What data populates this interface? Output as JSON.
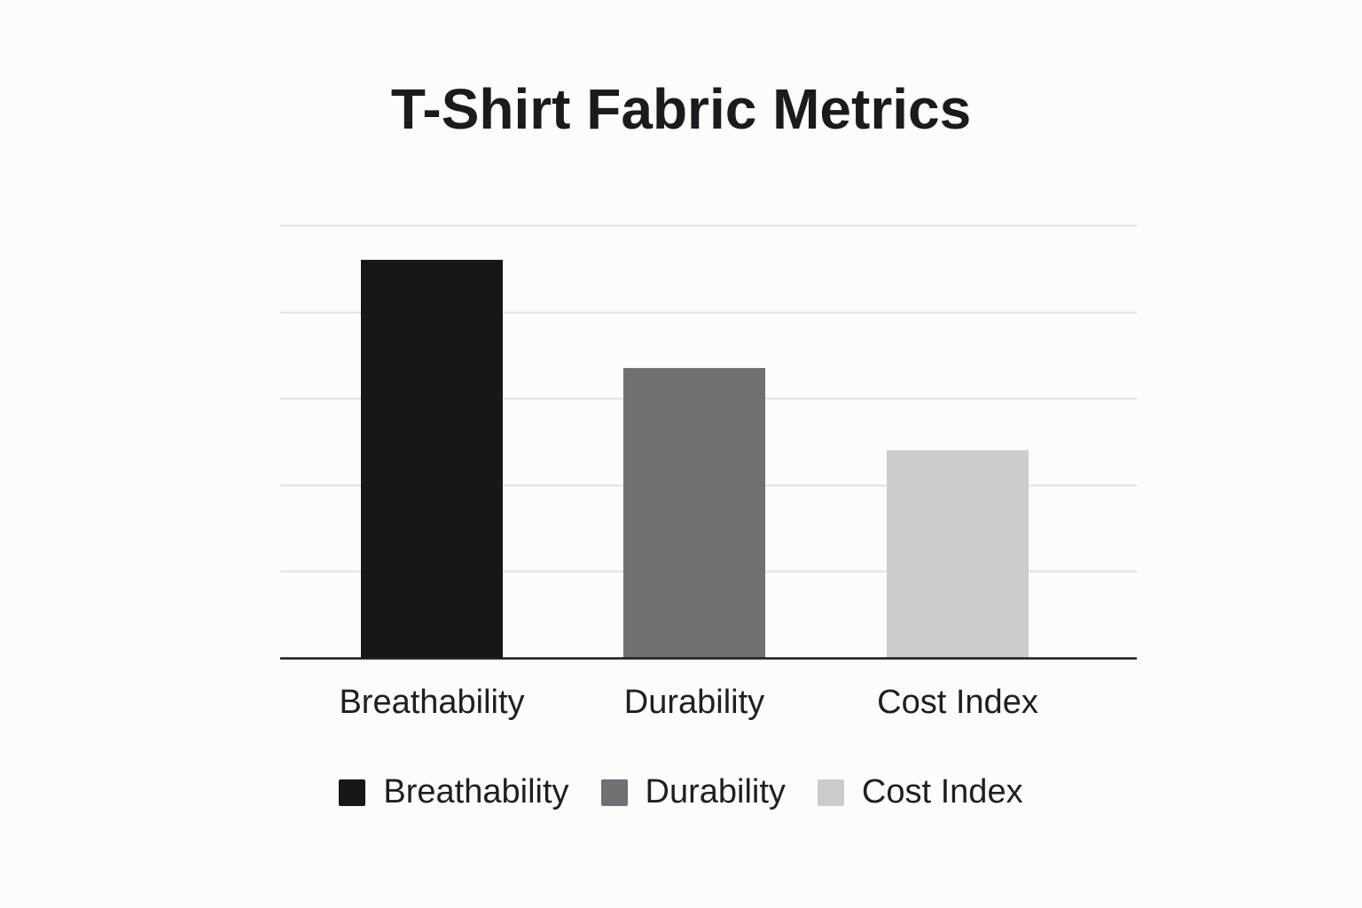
{
  "chart_data": {
    "type": "bar",
    "title": "T-Shirt Fabric Metrics",
    "xlabel": "",
    "ylabel": "",
    "categories": [
      "Breathability",
      "Durability",
      "Cost Index"
    ],
    "values": [
      92,
      67,
      48
    ],
    "colors": [
      "#161718",
      "#6f7073",
      "#cccccc"
    ],
    "ylim": [
      0,
      100
    ],
    "grid": true,
    "legend": {
      "placement": "bottom",
      "entries": [
        "Breathability",
        "Durability",
        "Cost Index"
      ]
    }
  }
}
